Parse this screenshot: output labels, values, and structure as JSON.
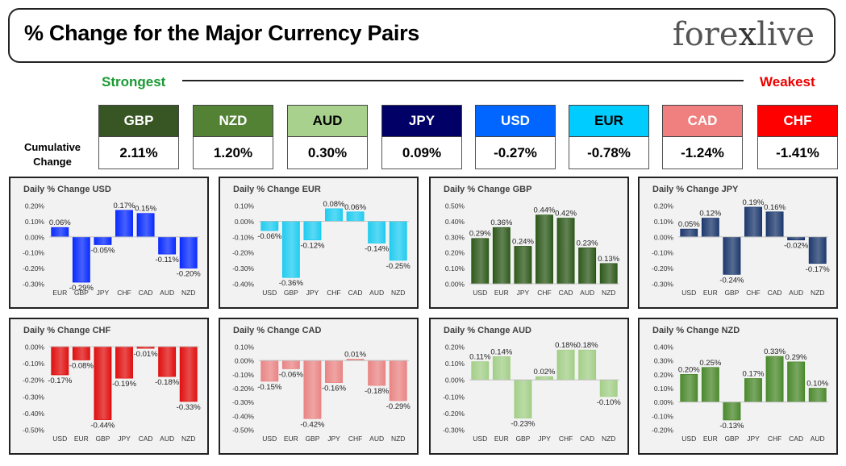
{
  "header": {
    "title": "% Change for the Major Currency Pairs",
    "logo_left": "fore",
    "logo_x": "x",
    "logo_right": "live"
  },
  "scale": {
    "strongest": "Strongest",
    "weakest": "Weakest"
  },
  "cumulative": {
    "label": "Cumulative Change",
    "items": [
      {
        "ccy": "GBP",
        "value": "2.11%",
        "bg": "#375623",
        "fg": "#ffffff"
      },
      {
        "ccy": "NZD",
        "value": "1.20%",
        "bg": "#548235",
        "fg": "#ffffff"
      },
      {
        "ccy": "AUD",
        "value": "0.30%",
        "bg": "#a9d18e",
        "fg": "#000000"
      },
      {
        "ccy": "JPY",
        "value": "0.09%",
        "bg": "#000066",
        "fg": "#ffffff"
      },
      {
        "ccy": "USD",
        "value": "-0.27%",
        "bg": "#0066ff",
        "fg": "#ffffff"
      },
      {
        "ccy": "EUR",
        "value": "-0.78%",
        "bg": "#00ccff",
        "fg": "#000000"
      },
      {
        "ccy": "CAD",
        "value": "-1.24%",
        "bg": "#f08080",
        "fg": "#ffffff"
      },
      {
        "ccy": "CHF",
        "value": "-1.41%",
        "bg": "#ff0000",
        "fg": "#ffffff"
      }
    ]
  },
  "chart_data": [
    {
      "type": "bar",
      "title": "Daily % Change USD",
      "categories": [
        "EUR",
        "GBP",
        "JPY",
        "CHF",
        "CAD",
        "AUD",
        "NZD"
      ],
      "values": [
        0.06,
        -0.29,
        -0.05,
        0.17,
        0.15,
        -0.11,
        -0.2
      ],
      "labels": [
        "0.06%",
        "-0.29%",
        "-0.05%",
        "0.17%",
        "0.15%",
        "-0.11%",
        "-0.20%"
      ],
      "ylim": [
        -0.3,
        0.2
      ],
      "ticks": [
        0.2,
        0.1,
        0.0,
        -0.1,
        -0.2,
        -0.3
      ],
      "tick_labels": [
        "0.20%",
        "0.10%",
        "0.00%",
        "-0.10%",
        "-0.20%",
        "-0.30%"
      ],
      "color": "#0a2cff"
    },
    {
      "type": "bar",
      "title": "Daily % Change EUR",
      "categories": [
        "USD",
        "GBP",
        "JPY",
        "CHF",
        "CAD",
        "AUD",
        "NZD"
      ],
      "values": [
        -0.06,
        -0.36,
        -0.12,
        0.08,
        0.06,
        -0.14,
        -0.25
      ],
      "labels": [
        "-0.06%",
        "-0.36%",
        "-0.12%",
        "0.08%",
        "0.06%",
        "-0.14%",
        "-0.25%"
      ],
      "ylim": [
        -0.4,
        0.1
      ],
      "ticks": [
        0.1,
        0.0,
        -0.1,
        -0.2,
        -0.3,
        -0.4
      ],
      "tick_labels": [
        "0.10%",
        "0.00%",
        "-0.10%",
        "-0.20%",
        "-0.30%",
        "-0.40%"
      ],
      "color": "#22ccf0"
    },
    {
      "type": "bar",
      "title": "Daily % Change GBP",
      "categories": [
        "USD",
        "EUR",
        "JPY",
        "CHF",
        "CAD",
        "AUD",
        "NZD"
      ],
      "values": [
        0.29,
        0.36,
        0.24,
        0.44,
        0.42,
        0.23,
        0.13
      ],
      "labels": [
        "0.29%",
        "0.36%",
        "0.24%",
        "0.44%",
        "0.42%",
        "0.23%",
        "0.13%"
      ],
      "ylim": [
        0.0,
        0.5
      ],
      "ticks": [
        0.5,
        0.4,
        0.3,
        0.2,
        0.1,
        0.0
      ],
      "tick_labels": [
        "0.50%",
        "0.40%",
        "0.30%",
        "0.20%",
        "0.10%",
        "0.00%"
      ],
      "color": "#2f5a1c"
    },
    {
      "type": "bar",
      "title": "Daily % Change JPY",
      "categories": [
        "USD",
        "EUR",
        "GBP",
        "CHF",
        "CAD",
        "AUD",
        "NZD"
      ],
      "values": [
        0.05,
        0.12,
        -0.24,
        0.19,
        0.16,
        -0.02,
        -0.17
      ],
      "labels": [
        "0.05%",
        "0.12%",
        "-0.24%",
        "0.19%",
        "0.16%",
        "-0.02%",
        "-0.17%"
      ],
      "ylim": [
        -0.3,
        0.2
      ],
      "ticks": [
        0.2,
        0.1,
        0.0,
        -0.1,
        -0.2,
        -0.3
      ],
      "tick_labels": [
        "0.20%",
        "0.10%",
        "0.00%",
        "-0.10%",
        "-0.20%",
        "-0.30%"
      ],
      "color": "#1e3a6e"
    },
    {
      "type": "bar",
      "title": "Daily % Change CHF",
      "categories": [
        "USD",
        "EUR",
        "GBP",
        "JPY",
        "CAD",
        "AUD",
        "NZD"
      ],
      "values": [
        -0.17,
        -0.08,
        -0.44,
        -0.19,
        -0.01,
        -0.18,
        -0.33
      ],
      "labels": [
        "-0.17%",
        "-0.08%",
        "-0.44%",
        "-0.19%",
        "-0.01%",
        "-0.18%",
        "-0.33%"
      ],
      "ylim": [
        -0.5,
        0.0
      ],
      "ticks": [
        0.0,
        -0.1,
        -0.2,
        -0.3,
        -0.4,
        -0.5
      ],
      "tick_labels": [
        "0.00%",
        "-0.10%",
        "-0.20%",
        "-0.30%",
        "-0.40%",
        "-0.50%"
      ],
      "color": "#e01010"
    },
    {
      "type": "bar",
      "title": "Daily % Change CAD",
      "categories": [
        "USD",
        "EUR",
        "GBP",
        "JPY",
        "CHF",
        "AUD",
        "NZD"
      ],
      "values": [
        -0.15,
        -0.06,
        -0.42,
        -0.16,
        0.01,
        -0.18,
        -0.29
      ],
      "labels": [
        "-0.15%",
        "-0.06%",
        "-0.42%",
        "-0.16%",
        "0.01%",
        "-0.18%",
        "-0.29%"
      ],
      "ylim": [
        -0.5,
        0.1
      ],
      "ticks": [
        0.1,
        0.0,
        -0.1,
        -0.2,
        -0.3,
        -0.4,
        -0.5
      ],
      "tick_labels": [
        "0.10%",
        "0.00%",
        "-0.10%",
        "-0.20%",
        "-0.30%",
        "-0.40%",
        "-0.50%"
      ],
      "color": "#e98585"
    },
    {
      "type": "bar",
      "title": "Daily % Change AUD",
      "categories": [
        "USD",
        "EUR",
        "GBP",
        "JPY",
        "CHF",
        "CAD",
        "NZD"
      ],
      "values": [
        0.11,
        0.14,
        -0.23,
        0.02,
        0.18,
        0.18,
        -0.1
      ],
      "labels": [
        "0.11%",
        "0.14%",
        "-0.23%",
        "0.02%",
        "0.18%",
        "0.18%",
        "-0.10%"
      ],
      "ylim": [
        -0.3,
        0.2
      ],
      "ticks": [
        0.2,
        0.1,
        0.0,
        -0.1,
        -0.2,
        -0.3
      ],
      "tick_labels": [
        "0.20%",
        "0.10%",
        "0.00%",
        "-0.10%",
        "-0.20%",
        "-0.30%"
      ],
      "color": "#a3cf88"
    },
    {
      "type": "bar",
      "title": "Daily % Change NZD",
      "categories": [
        "USD",
        "EUR",
        "GBP",
        "JPY",
        "CHF",
        "CAD",
        "AUD"
      ],
      "values": [
        0.2,
        0.25,
        -0.13,
        0.17,
        0.33,
        0.29,
        0.1
      ],
      "labels": [
        "0.20%",
        "0.25%",
        "-0.13%",
        "0.17%",
        "0.33%",
        "0.29%",
        "0.10%"
      ],
      "ylim": [
        -0.2,
        0.4
      ],
      "ticks": [
        0.4,
        0.3,
        0.2,
        0.1,
        0.0,
        -0.1,
        -0.2
      ],
      "tick_labels": [
        "0.40%",
        "0.30%",
        "0.20%",
        "0.10%",
        "0.00%",
        "-0.10%",
        "-0.20%"
      ],
      "color": "#4c8a2e"
    }
  ]
}
